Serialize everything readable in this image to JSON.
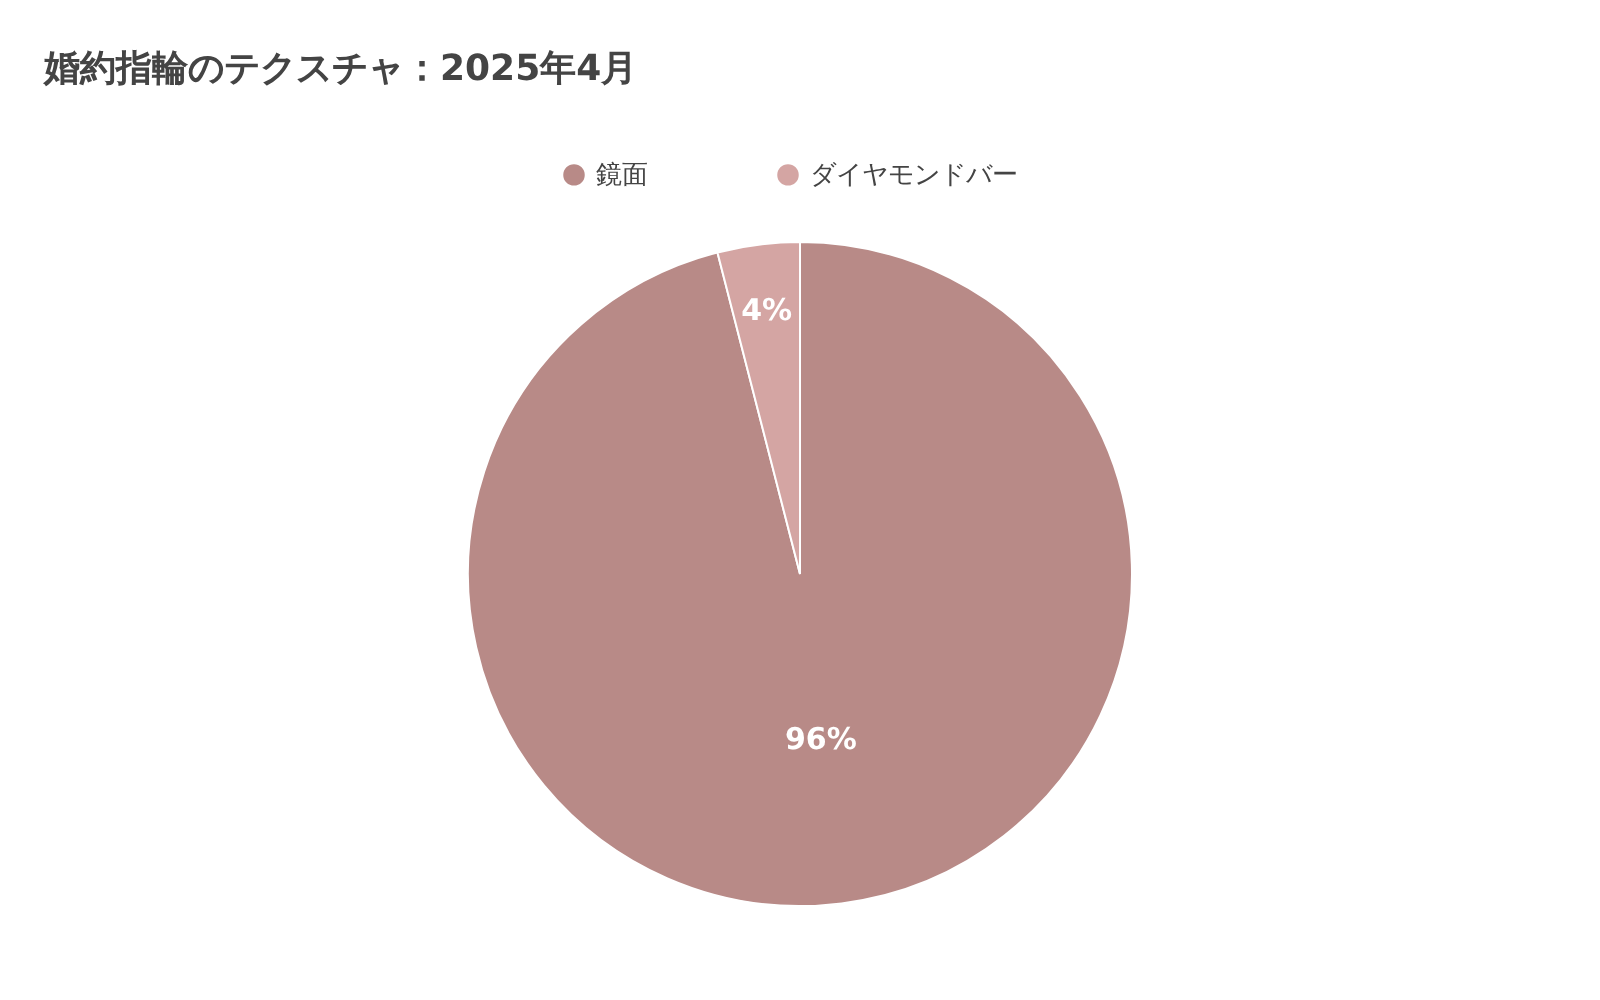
{
  "chart_data": {
    "type": "pie",
    "title": "婚約指輪のテクスチャ：2025年4月",
    "categories": [
      "鏡面",
      "ダイヤモンドバー"
    ],
    "values": [
      96,
      4
    ],
    "colors": [
      "#b88a87",
      "#d4a5a3"
    ],
    "value_labels": [
      "96%",
      "4%"
    ],
    "legend": "top"
  }
}
